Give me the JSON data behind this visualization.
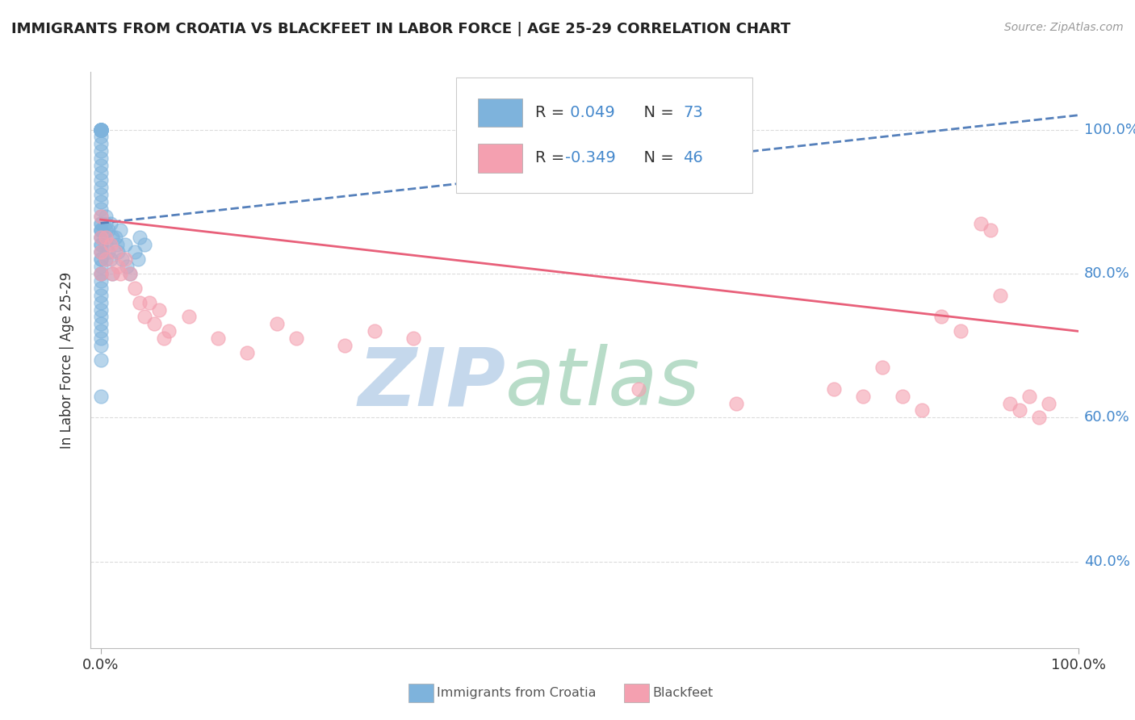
{
  "title": "IMMIGRANTS FROM CROATIA VS BLACKFEET IN LABOR FORCE | AGE 25-29 CORRELATION CHART",
  "source": "Source: ZipAtlas.com",
  "ylabel": "In Labor Force | Age 25-29",
  "xlim": [
    -0.01,
    1.0
  ],
  "ylim": [
    0.28,
    1.08
  ],
  "yticks": [
    0.4,
    0.6,
    0.8,
    1.0
  ],
  "ytick_labels": [
    "40.0%",
    "60.0%",
    "80.0%",
    "100.0%"
  ],
  "xticks": [
    0.0,
    1.0
  ],
  "xtick_labels": [
    "0.0%",
    "100.0%"
  ],
  "croatia_R": 0.049,
  "croatia_N": 73,
  "blackfeet_R": -0.349,
  "blackfeet_N": 46,
  "croatia_color": "#7EB3DC",
  "blackfeet_color": "#F4A0B0",
  "croatia_trend_color": "#5580BB",
  "blackfeet_trend_color": "#E8607A",
  "background_color": "#ffffff",
  "grid_color": "#cccccc",
  "watermark_zip_color": "#C5D8EC",
  "watermark_atlas_color": "#B8DCC8",
  "croatia_trend_x": [
    0.0,
    1.0
  ],
  "croatia_trend_y": [
    0.87,
    1.02
  ],
  "blackfeet_trend_x": [
    0.0,
    1.0
  ],
  "blackfeet_trend_y": [
    0.875,
    0.72
  ],
  "croatia_dots_x": [
    0.0,
    0.0,
    0.0,
    0.0,
    0.0,
    0.0,
    0.0,
    0.0,
    0.0,
    0.0,
    0.0,
    0.0,
    0.0,
    0.0,
    0.0,
    0.0,
    0.0,
    0.0,
    0.0,
    0.0,
    0.0,
    0.0,
    0.0,
    0.0,
    0.0,
    0.0,
    0.0,
    0.0,
    0.0,
    0.0,
    0.0,
    0.0,
    0.0,
    0.0,
    0.0,
    0.0,
    0.0,
    0.0,
    0.0,
    0.0,
    0.0,
    0.0,
    0.0,
    0.0,
    0.0,
    0.0,
    0.0,
    0.0,
    0.0,
    0.0,
    0.005,
    0.005,
    0.005,
    0.005,
    0.005,
    0.008,
    0.008,
    0.01,
    0.01,
    0.012,
    0.012,
    0.015,
    0.017,
    0.018,
    0.02,
    0.022,
    0.025,
    0.027,
    0.03,
    0.035,
    0.038,
    0.04,
    0.045
  ],
  "croatia_dots_y": [
    1.0,
    1.0,
    1.0,
    1.0,
    1.0,
    1.0,
    1.0,
    1.0,
    1.0,
    1.0,
    0.99,
    0.98,
    0.97,
    0.96,
    0.95,
    0.94,
    0.93,
    0.92,
    0.91,
    0.9,
    0.89,
    0.88,
    0.87,
    0.87,
    0.86,
    0.86,
    0.86,
    0.85,
    0.85,
    0.84,
    0.84,
    0.83,
    0.83,
    0.82,
    0.82,
    0.81,
    0.8,
    0.8,
    0.79,
    0.78,
    0.77,
    0.76,
    0.75,
    0.74,
    0.73,
    0.72,
    0.71,
    0.7,
    0.68,
    0.63,
    0.88,
    0.87,
    0.86,
    0.84,
    0.82,
    0.86,
    0.83,
    0.87,
    0.82,
    0.85,
    0.8,
    0.85,
    0.84,
    0.83,
    0.86,
    0.82,
    0.84,
    0.81,
    0.8,
    0.83,
    0.82,
    0.85,
    0.84
  ],
  "blackfeet_dots_x": [
    0.0,
    0.0,
    0.0,
    0.0,
    0.005,
    0.005,
    0.01,
    0.012,
    0.015,
    0.018,
    0.02,
    0.025,
    0.03,
    0.035,
    0.04,
    0.045,
    0.05,
    0.055,
    0.06,
    0.065,
    0.07,
    0.09,
    0.12,
    0.15,
    0.18,
    0.2,
    0.25,
    0.28,
    0.32,
    0.55,
    0.65,
    0.75,
    0.78,
    0.8,
    0.82,
    0.84,
    0.86,
    0.88,
    0.9,
    0.91,
    0.92,
    0.93,
    0.94,
    0.95,
    0.96,
    0.97
  ],
  "blackfeet_dots_y": [
    0.88,
    0.85,
    0.83,
    0.8,
    0.85,
    0.82,
    0.84,
    0.8,
    0.83,
    0.81,
    0.8,
    0.82,
    0.8,
    0.78,
    0.76,
    0.74,
    0.76,
    0.73,
    0.75,
    0.71,
    0.72,
    0.74,
    0.71,
    0.69,
    0.73,
    0.71,
    0.7,
    0.72,
    0.71,
    0.64,
    0.62,
    0.64,
    0.63,
    0.67,
    0.63,
    0.61,
    0.74,
    0.72,
    0.87,
    0.86,
    0.77,
    0.62,
    0.61,
    0.63,
    0.6,
    0.62
  ]
}
